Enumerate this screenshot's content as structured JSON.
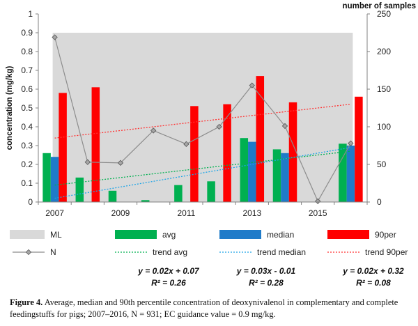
{
  "chart_data": {
    "type": "bar",
    "x": [
      2007,
      2008,
      2009,
      2010,
      2011,
      2012,
      2013,
      2014,
      2015,
      2016
    ],
    "x_tick_labels": [
      "2007",
      "2009",
      "2011",
      "2013",
      "2015"
    ],
    "y_axis_left": {
      "label": "concentration  (mg/kg)",
      "range": [
        0,
        1
      ],
      "ticks": [
        "0",
        "0.1",
        "0.2",
        "0.3",
        "0.4",
        "0.5",
        "0.6",
        "0.7",
        "0.8",
        "0.9",
        "1"
      ]
    },
    "y_axis_right": {
      "label": "number of samples",
      "range": [
        0,
        250
      ],
      "ticks": [
        "0",
        "50",
        "100",
        "150",
        "200",
        "250"
      ]
    },
    "ml": {
      "name": "ML",
      "value": 0.9,
      "color": "#d9d9d9"
    },
    "series": [
      {
        "name": "avg",
        "color": "#00b050",
        "values": [
          0.26,
          0.13,
          0.06,
          0.01,
          0.09,
          0.11,
          0.34,
          0.28,
          0.0,
          0.31
        ]
      },
      {
        "name": "median",
        "color": "#1f7bc9",
        "values": [
          0.24,
          0.0,
          0.0,
          0.0,
          0.0,
          0.0,
          0.32,
          0.26,
          0.0,
          0.3
        ]
      },
      {
        "name": "90per",
        "color": "#ff0000",
        "values": [
          0.58,
          0.61,
          0.0,
          0.0,
          0.51,
          0.52,
          0.67,
          0.53,
          0.0,
          0.56
        ]
      }
    ],
    "samples": {
      "name": "N",
      "color": "#7f7f7f",
      "values": [
        219,
        53,
        52,
        95,
        77,
        100,
        155,
        101,
        1,
        78
      ]
    },
    "trends": [
      {
        "name": "trend avg",
        "color": "#00b050",
        "slope": 0.02,
        "intercept": 0.07,
        "eq_text": "y = 0.02x + 0.07",
        "r2_text": "R² = 0.26",
        "r2": 0.26
      },
      {
        "name": "trend median",
        "color": "#1fa5e6",
        "slope": 0.03,
        "intercept": -0.01,
        "eq_text": "y = 0.03x - 0.01",
        "r2_text": "R² = 0.28",
        "r2": 0.28
      },
      {
        "name": "trend 90per",
        "color": "#ff3333",
        "slope": 0.02,
        "intercept": 0.32,
        "eq_text": "y = 0.02x + 0.32",
        "r2_text": "R² = 0.08",
        "r2": 0.08
      }
    ],
    "legend": [
      {
        "name": "ML",
        "kind": "area",
        "color": "#d9d9d9"
      },
      {
        "name": "avg",
        "kind": "bar",
        "color": "#00b050"
      },
      {
        "name": "median",
        "kind": "bar",
        "color": "#1f7bc9"
      },
      {
        "name": "90per",
        "kind": "bar",
        "color": "#ff0000"
      },
      {
        "name": "N",
        "kind": "line-marker",
        "color": "#7f7f7f"
      },
      {
        "name": "trend avg",
        "kind": "dotted",
        "color": "#00b050"
      },
      {
        "name": "trend median",
        "kind": "dotted",
        "color": "#1fa5e6"
      },
      {
        "name": "trend 90per",
        "kind": "dotted",
        "color": "#ff3333"
      }
    ]
  },
  "caption": {
    "label": "Figure 4.",
    "text": "Average, median and 90th percentile concentration of deoxynivalenol in complementary and complete feedingstuffs for pigs; 2007–2016, N = 931; EC guidance value = 0.9 mg/kg."
  }
}
